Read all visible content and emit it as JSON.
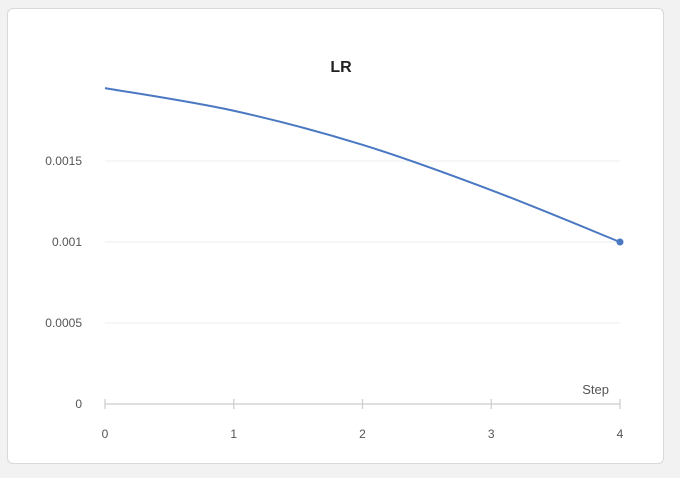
{
  "chart_data": {
    "type": "line",
    "title": "LR",
    "xlabel": "Step",
    "ylabel": "",
    "x": [
      0,
      1,
      2,
      3,
      4
    ],
    "series": [
      {
        "name": "LR",
        "values": [
          0.00195,
          0.00181,
          0.0016,
          0.00132,
          0.001
        ]
      }
    ],
    "xlim": [
      0,
      4
    ],
    "ylim": [
      0,
      0.002
    ],
    "x_ticks": [
      0,
      1,
      2,
      3,
      4
    ],
    "x_tick_labels": [
      "0",
      "1",
      "2",
      "3",
      "4"
    ],
    "y_ticks": [
      0,
      0.0005,
      0.001,
      0.0015
    ],
    "y_tick_labels": [
      "0",
      "0.0005",
      "0.001",
      "0.0015"
    ],
    "grid": true,
    "legend": "none",
    "colors": {
      "line": "#4a78c2",
      "grid": "#eeeeee",
      "axis": "#cccccc"
    }
  }
}
